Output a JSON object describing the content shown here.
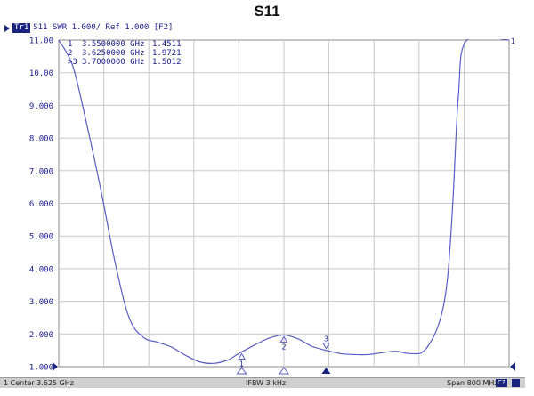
{
  "title": "S11",
  "trace_header": {
    "badge": "Tr1",
    "text": "S11  SWR 1.000/ Ref 1.000 [F2]"
  },
  "status": {
    "center": "1  Center 3.625 GHz",
    "ifbw": "IFBW 3 kHz",
    "span": "Span 800 MHz",
    "channel": "C?"
  },
  "colors": {
    "trace": "#5a5cc8",
    "grid": "#c8c8c8",
    "axis_text": "#1b1b8f",
    "accent": "#1a237e"
  },
  "chart_data": {
    "type": "line",
    "title": "S11",
    "xlabel": "",
    "ylabel": "SWR",
    "xlim": [
      3.225,
      4.025
    ],
    "ylim": [
      1.0,
      11.0
    ],
    "x_unit": "GHz",
    "yticks": [
      "11.00",
      "10.00",
      "9.000",
      "8.000",
      "7.000",
      "6.000",
      "5.000",
      "4.000",
      "3.000",
      "2.000",
      "1.000"
    ],
    "grid": true,
    "series": [
      {
        "x": [
          3.225,
          3.25,
          3.275,
          3.3,
          3.325,
          3.35,
          3.375,
          3.4,
          3.425,
          3.45,
          3.475,
          3.5,
          3.525,
          3.54,
          3.55,
          3.575,
          3.6,
          3.625,
          3.65,
          3.675,
          3.7,
          3.725,
          3.75,
          3.775,
          3.8,
          3.825,
          3.85,
          3.875,
          3.9,
          3.915,
          3.925,
          3.935,
          3.95,
          4.025
        ],
        "y": [
          11.0,
          10.2,
          8.4,
          6.4,
          4.2,
          2.5,
          1.9,
          1.75,
          1.6,
          1.35,
          1.15,
          1.1,
          1.2,
          1.35,
          1.45,
          1.68,
          1.88,
          1.97,
          1.85,
          1.62,
          1.5,
          1.4,
          1.37,
          1.37,
          1.43,
          1.47,
          1.4,
          1.5,
          2.3,
          3.6,
          6.0,
          9.3,
          11.0,
          11.0
        ]
      }
    ],
    "trace_end_label": "1",
    "markers": [
      {
        "id": "1",
        "label": "1",
        "freq": "3.5500000 GHz",
        "x": 3.55,
        "value": 1.4511,
        "value_text": "1.4511",
        "active": false
      },
      {
        "id": "2",
        "label": "2",
        "freq": "3.6250000 GHz",
        "x": 3.625,
        "value": 1.9721,
        "value_text": "1.9721",
        "active": false
      },
      {
        "id": "3",
        "label": ">3",
        "freq": "3.7000000 GHz",
        "x": 3.7,
        "value": 1.5012,
        "value_text": "1.5012",
        "active": true
      }
    ]
  }
}
